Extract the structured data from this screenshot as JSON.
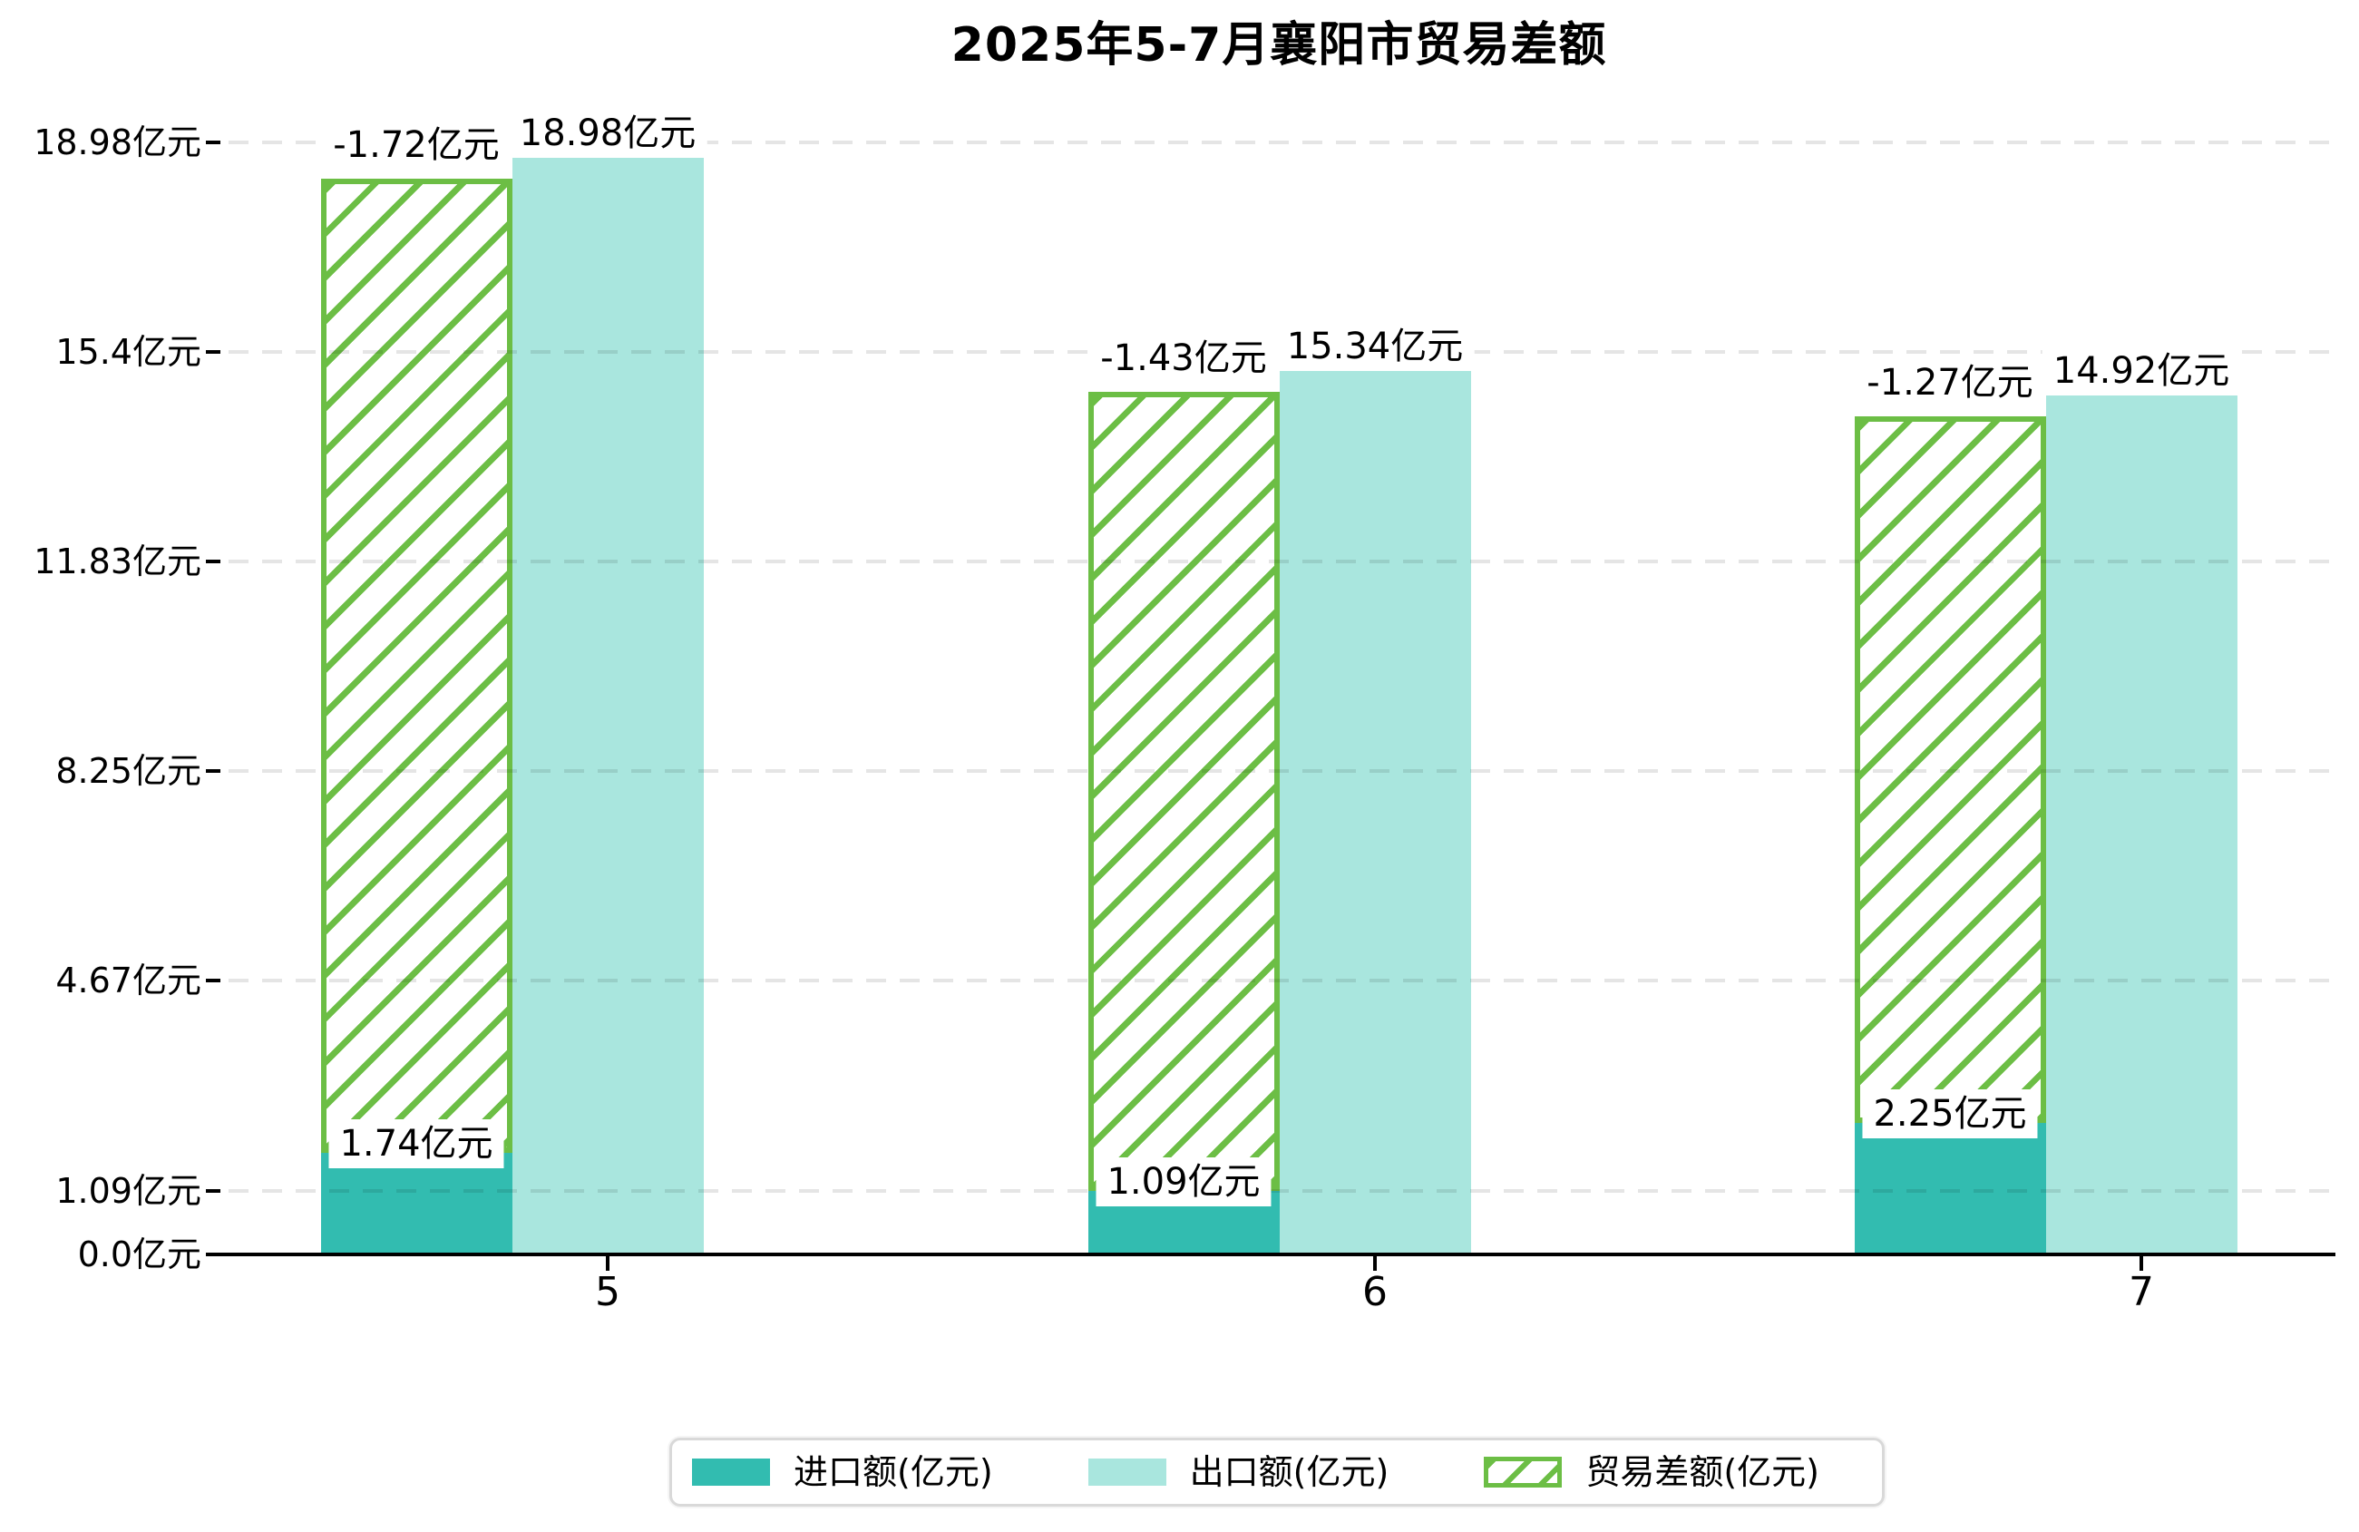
{
  "title": "2025年5-7月襄阳市贸易差额",
  "chart_data": {
    "type": "bar",
    "title": "2025年5-7月襄阳市贸易差额",
    "categories": [
      "5",
      "6",
      "7"
    ],
    "series": [
      {
        "name": "进口额(亿元)",
        "values": [
          1.74,
          1.09,
          2.25
        ],
        "color": "#32bcb0",
        "pattern": "solid"
      },
      {
        "name": "出口额(亿元)",
        "values": [
          18.98,
          15.34,
          14.92
        ],
        "color": "#a9e6de",
        "pattern": "solid"
      },
      {
        "name": "贸易差额(亿元)",
        "values": [
          -1.72,
          -1.43,
          -1.27
        ],
        "color": "#6cbe45",
        "pattern": "diagonal-hatch"
      }
    ],
    "bar_value_labels": {
      "import": [
        "1.74亿元",
        "1.09亿元",
        "2.25亿元"
      ],
      "export": [
        "18.98亿元",
        "15.34亿元",
        "14.92亿元"
      ],
      "balance": [
        "-1.72亿元",
        "-1.43亿元",
        "-1.27亿元"
      ]
    },
    "y_axis": {
      "ticks": [
        {
          "value": 0.0,
          "label": "0.0亿元"
        },
        {
          "value": 1.09,
          "label": "1.09亿元"
        },
        {
          "value": 4.67,
          "label": "4.67亿元"
        },
        {
          "value": 8.25,
          "label": "8.25亿元"
        },
        {
          "value": 11.83,
          "label": "11.83亿元"
        },
        {
          "value": 15.4,
          "label": "15.4亿元"
        },
        {
          "value": 18.98,
          "label": "18.98亿元"
        }
      ],
      "ylim": [
        0,
        19.9
      ]
    },
    "x_axis": {
      "tick_labels": [
        "5",
        "6",
        "7"
      ]
    },
    "grid": "horizontal-dashed",
    "legend_position": "bottom"
  },
  "legend": {
    "items": [
      {
        "label": "进口额(亿元)",
        "swatch": "teal-solid"
      },
      {
        "label": "出口额(亿元)",
        "swatch": "light-cyan-solid"
      },
      {
        "label": "贸易差额(亿元)",
        "swatch": "green-hatched"
      }
    ]
  },
  "colors": {
    "import": "#32bcb0",
    "export": "#a9e6de",
    "balance_hatch": "#6cbe45",
    "gridline": "#e4e4e4",
    "axis": "#000000",
    "legend_border": "#d9d9d9",
    "background": "#ffffff",
    "text": "#000000"
  }
}
